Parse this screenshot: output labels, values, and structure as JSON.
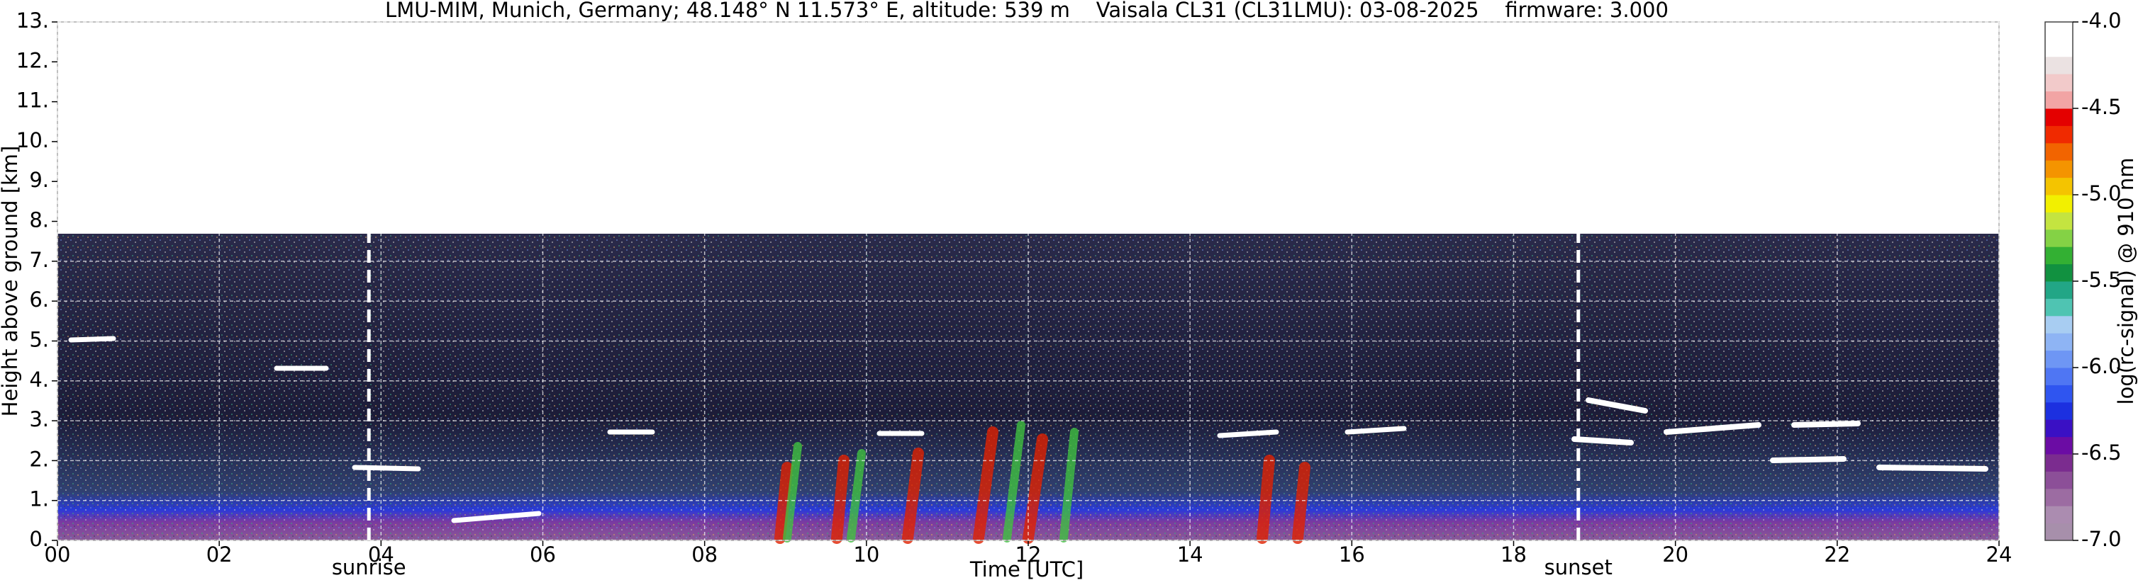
{
  "chart_data": {
    "type": "ceilometer",
    "title": "LMU-MIM, Munich, Germany; 48.148° N 11.573° E, altitude: 539 m    Vaisala CL31 (CL31LMU): 03-08-2025    firmware: 3.000",
    "xlabel": "Time [UTC]",
    "ylabel": "Height above ground [km]",
    "xlim": [
      0,
      24
    ],
    "xticks": [
      {
        "value": 0,
        "label": "00"
      },
      {
        "value": 2,
        "label": "02"
      },
      {
        "value": 4,
        "label": "04"
      },
      {
        "value": 6,
        "label": "06"
      },
      {
        "value": 8,
        "label": "08"
      },
      10,
      12,
      14,
      16,
      18,
      20,
      22,
      24
    ],
    "ylim": [
      0,
      13
    ],
    "yticks": [
      {
        "value": 0,
        "label": "0."
      },
      {
        "value": 1,
        "label": "1."
      },
      {
        "value": 2,
        "label": "2."
      },
      {
        "value": 3,
        "label": "3."
      },
      {
        "value": 4,
        "label": "4."
      },
      {
        "value": 5,
        "label": "5."
      },
      {
        "value": 6,
        "label": "6."
      },
      {
        "value": 7,
        "label": "7."
      },
      {
        "value": 8,
        "label": "8."
      },
      {
        "value": 9,
        "label": "9."
      },
      {
        "value": 10,
        "label": "10."
      },
      {
        "value": 11,
        "label": "11."
      },
      {
        "value": 12,
        "label": "12."
      },
      {
        "value": 13,
        "label": "13."
      }
    ],
    "grid": true,
    "annotations": [
      {
        "text": "sunrise",
        "x": 3.85
      },
      {
        "text": "sunset",
        "x": 18.8
      }
    ],
    "colorbar": {
      "label": "log(rc-signal) @ 910 nm",
      "clim": [
        -7,
        -4
      ],
      "ticks": [
        {
          "value": -7,
          "label": "-7.0"
        },
        {
          "value": -6.5,
          "label": "-6.5"
        },
        {
          "value": -6,
          "label": "-6.0"
        },
        {
          "value": -5.5,
          "label": "-5.5"
        },
        {
          "value": -5,
          "label": "-5.0"
        },
        {
          "value": -4.5,
          "label": "-4.5"
        },
        {
          "value": -4,
          "label": "-4.0"
        }
      ],
      "colors": [
        "#a78fab",
        "#ab8cb0",
        "#9c6ca2",
        "#8c4f98",
        "#7b2c8f",
        "#6b0ca4",
        "#3a10c4",
        "#1c30e0",
        "#2f55f0",
        "#4f76f3",
        "#6e96f4",
        "#8eb4f4",
        "#a8cdf2",
        "#4fc4b2",
        "#22a686",
        "#119140",
        "#33b033",
        "#84d245",
        "#c4e440",
        "#f2f000",
        "#f4c400",
        "#f49400",
        "#f26400",
        "#f02a00",
        "#e40000",
        "#f2a4a4",
        "#f2caca",
        "#ebe2e2",
        "#ffffff",
        "#ffffff"
      ]
    }
  }
}
